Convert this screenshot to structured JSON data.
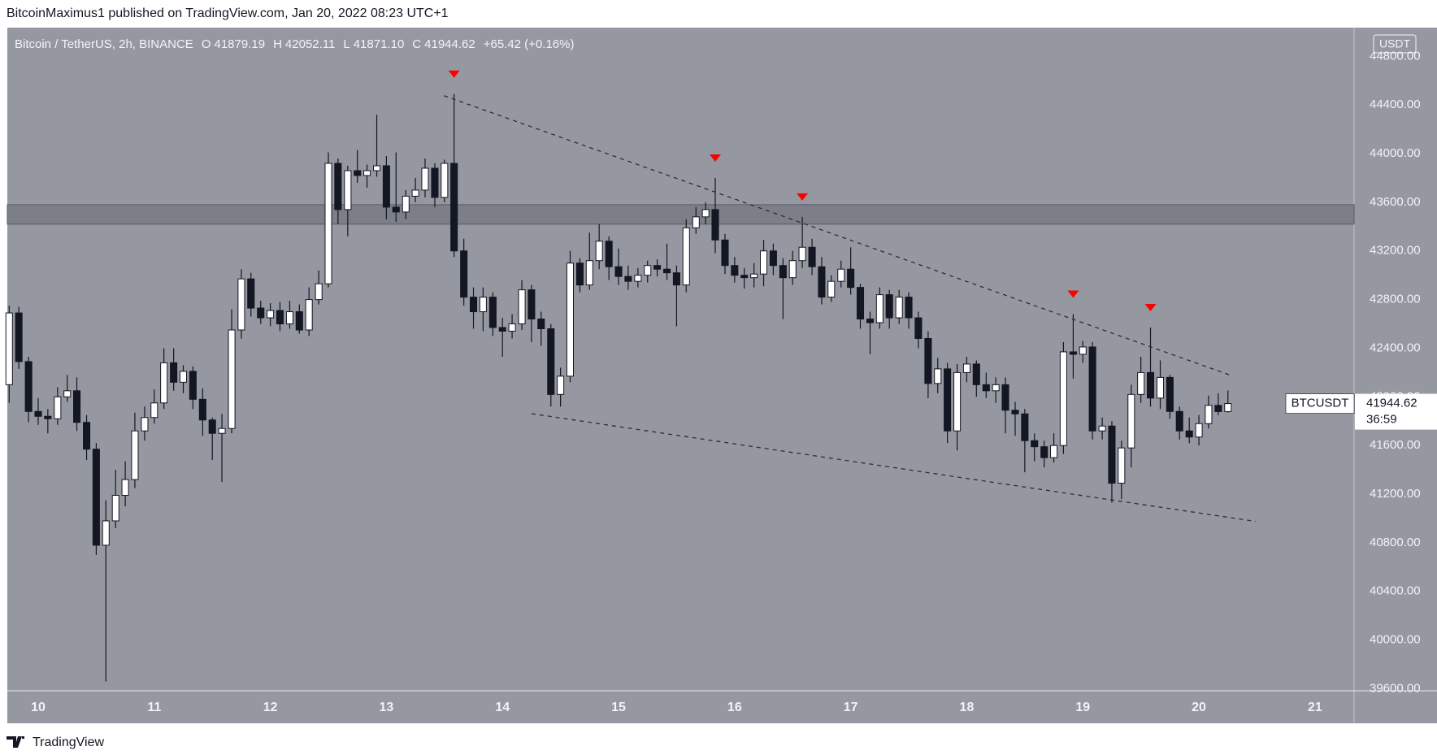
{
  "header": {
    "byline": "BitcoinMaximus1 published on TradingView.com, Jan 20, 2022 08:23 UTC+1"
  },
  "chart_data": {
    "type": "candlestick",
    "title": "Bitcoin / TetherUS, 2h, BINANCE",
    "ohlc_labels": [
      "O",
      "H",
      "L",
      "C"
    ],
    "last_bar_labels": {
      "open": "41879.19",
      "high": "42052.11",
      "low": "41871.10",
      "close": "41944.62"
    },
    "change_label": "+65.42 (+0.16%)",
    "currency": "USDT",
    "countdown": "36:59",
    "x": [
      9.75,
      9.833,
      9.917,
      10,
      10.083,
      10.167,
      10.25,
      10.333,
      10.417,
      10.5,
      10.583,
      10.667,
      10.75,
      10.833,
      10.917,
      11,
      11.083,
      11.167,
      11.25,
      11.333,
      11.417,
      11.5,
      11.583,
      11.667,
      11.75,
      11.833,
      11.917,
      12,
      12.083,
      12.167,
      12.25,
      12.333,
      12.417,
      12.5,
      12.583,
      12.667,
      12.75,
      12.833,
      12.917,
      13,
      13.083,
      13.167,
      13.25,
      13.333,
      13.417,
      13.5,
      13.583,
      13.667,
      13.75,
      13.833,
      13.917,
      14,
      14.083,
      14.167,
      14.25,
      14.333,
      14.417,
      14.5,
      14.583,
      14.667,
      14.75,
      14.833,
      14.917,
      15,
      15.083,
      15.167,
      15.25,
      15.333,
      15.417,
      15.5,
      15.583,
      15.667,
      15.75,
      15.833,
      15.917,
      16,
      16.083,
      16.167,
      16.25,
      16.333,
      16.417,
      16.5,
      16.583,
      16.667,
      16.75,
      16.833,
      16.917,
      17,
      17.083,
      17.167,
      17.25,
      17.333,
      17.417,
      17.5,
      17.583,
      17.667,
      17.75,
      17.833,
      17.917,
      18,
      18.083,
      18.167,
      18.25,
      18.333,
      18.417,
      18.5,
      18.583,
      18.667,
      18.75,
      18.833,
      18.917,
      19,
      19.083,
      19.167,
      19.25,
      19.333,
      19.417,
      19.5,
      19.583,
      19.667,
      19.75,
      19.833,
      19.917,
      20,
      20.083,
      20.167,
      20.25
    ],
    "series": [
      {
        "name": "BTCUSDT",
        "up_color": "#ffffff",
        "down_color": "#131722",
        "open": [
          42100,
          42690,
          42290,
          41880,
          41840,
          41820,
          42000,
          42050,
          41790,
          41570,
          40780,
          40980,
          41190,
          41320,
          41720,
          41830,
          41950,
          42280,
          42120,
          42210,
          41980,
          41810,
          41700,
          41740,
          42550,
          42970,
          42730,
          42650,
          42710,
          42600,
          42700,
          42550,
          42800,
          42930,
          43920,
          43540,
          43860,
          43820,
          43860,
          43900,
          43560,
          43520,
          43650,
          43700,
          43880,
          43640,
          43920,
          43200,
          42820,
          42700,
          42820,
          42570,
          42540,
          42600,
          42880,
          42640,
          42560,
          42020,
          42170,
          43100,
          42920,
          43120,
          43280,
          43070,
          42990,
          42950,
          43000,
          43080,
          43050,
          43020,
          42920,
          43390,
          43480,
          43540,
          43290,
          43080,
          43000,
          42980,
          43010,
          43200,
          43080,
          42980,
          43120,
          43230,
          43070,
          42820,
          42950,
          43050,
          42900,
          42640,
          42610,
          42840,
          42650,
          42820,
          42650,
          42480,
          42110,
          42230,
          41720,
          42200,
          42270,
          42100,
          42050,
          42100,
          41890,
          41860,
          41640,
          41590,
          41500,
          41600,
          42370,
          42350,
          42410,
          41720,
          41760,
          41290,
          41580,
          42020,
          42200,
          41990,
          42160,
          41880,
          41720,
          41670,
          41780,
          41930,
          41879.19
        ],
        "high": [
          42750,
          42740,
          42330,
          41990,
          41900,
          42080,
          42180,
          42160,
          41850,
          41620,
          41150,
          41400,
          41470,
          41870,
          41920,
          42060,
          42400,
          42400,
          42260,
          42250,
          42070,
          41830,
          41860,
          42720,
          43050,
          43020,
          42790,
          42770,
          42780,
          42790,
          42760,
          42900,
          43040,
          44010,
          43960,
          43900,
          44030,
          43910,
          44320,
          43980,
          44010,
          43700,
          43800,
          43960,
          43920,
          43950,
          44490,
          43300,
          42900,
          42900,
          42860,
          42650,
          42680,
          42960,
          42920,
          42700,
          42600,
          42240,
          43200,
          43140,
          43350,
          43420,
          43320,
          43220,
          43080,
          43060,
          43120,
          43130,
          43260,
          43080,
          43460,
          43560,
          43600,
          43800,
          43340,
          43150,
          43060,
          43100,
          43290,
          43260,
          43140,
          43200,
          43480,
          43300,
          43150,
          43000,
          43120,
          43230,
          42930,
          42700,
          42900,
          42880,
          42880,
          42860,
          42700,
          42540,
          42320,
          42280,
          42270,
          42330,
          42300,
          42200,
          42160,
          42160,
          41960,
          41900,
          41700,
          41640,
          41700,
          42450,
          42680,
          42460,
          42450,
          41830,
          41800,
          41640,
          42100,
          42330,
          42570,
          42300,
          42180,
          41920,
          41830,
          41850,
          42010,
          42030,
          42052.11
        ],
        "low": [
          41950,
          42230,
          41790,
          41770,
          41700,
          41770,
          41960,
          41720,
          41480,
          40700,
          39660,
          40920,
          41100,
          41250,
          41640,
          41780,
          41900,
          42050,
          42030,
          41900,
          41680,
          41480,
          41300,
          41700,
          42480,
          42660,
          42600,
          42580,
          42540,
          42560,
          42520,
          42500,
          42760,
          42900,
          43420,
          43320,
          43760,
          43720,
          43810,
          43460,
          43440,
          43460,
          43600,
          43640,
          43560,
          43600,
          43150,
          42750,
          42560,
          42540,
          42500,
          42330,
          42480,
          42550,
          42450,
          42420,
          41920,
          41920,
          42120,
          42860,
          42880,
          43050,
          42960,
          42920,
          42880,
          42900,
          42940,
          42990,
          42960,
          42580,
          42860,
          43340,
          43420,
          43180,
          43010,
          42940,
          42890,
          42900,
          42910,
          43000,
          42640,
          42920,
          43060,
          43000,
          42760,
          42780,
          42900,
          42840,
          42560,
          42350,
          42560,
          42560,
          42600,
          42560,
          42400,
          41990,
          42030,
          41620,
          41560,
          42120,
          42000,
          41990,
          41950,
          41700,
          41680,
          41380,
          41470,
          41420,
          41460,
          41530,
          42150,
          42280,
          41650,
          41650,
          41130,
          41160,
          41420,
          41950,
          41920,
          41900,
          41820,
          41650,
          41620,
          41600,
          41740,
          41850,
          41871.1
        ],
        "close": [
          42690,
          42290,
          41880,
          41840,
          41820,
          42000,
          42050,
          41790,
          41570,
          40780,
          40980,
          41190,
          41320,
          41720,
          41830,
          41950,
          42280,
          42120,
          42210,
          41980,
          41810,
          41700,
          41740,
          42550,
          42970,
          42730,
          42650,
          42710,
          42600,
          42700,
          42550,
          42800,
          42930,
          43920,
          43540,
          43860,
          43820,
          43860,
          43900,
          43560,
          43520,
          43650,
          43700,
          43880,
          43640,
          43920,
          43200,
          42820,
          42700,
          42820,
          42570,
          42540,
          42600,
          42880,
          42640,
          42560,
          42020,
          42170,
          43100,
          42920,
          43120,
          43280,
          43070,
          42990,
          42950,
          43000,
          43080,
          43050,
          43020,
          42920,
          43390,
          43480,
          43540,
          43290,
          43080,
          43000,
          42980,
          43010,
          43200,
          43080,
          42980,
          43120,
          43230,
          43070,
          42820,
          42950,
          43050,
          42900,
          42640,
          42610,
          42840,
          42650,
          42820,
          42650,
          42480,
          42110,
          42230,
          41720,
          42200,
          42270,
          42100,
          42050,
          42100,
          41890,
          41860,
          41640,
          41590,
          41500,
          41600,
          42370,
          42350,
          42410,
          41720,
          41760,
          41290,
          41580,
          42020,
          42200,
          41990,
          42160,
          41880,
          41720,
          41670,
          41780,
          41930,
          41879.19,
          41944.62
        ]
      }
    ],
    "xlim": [
      9.734,
      21.337
    ],
    "xticks": [
      10,
      11,
      12,
      13,
      14,
      15,
      16,
      17,
      18,
      19,
      20,
      21
    ],
    "ylim": [
      39583,
      45036
    ],
    "yticks": [
      {
        "value": 39600,
        "label": "39600.00"
      },
      {
        "value": 40000,
        "label": "40000.00"
      },
      {
        "value": 40400,
        "label": "40400.00"
      },
      {
        "value": 40800,
        "label": "40800.00"
      },
      {
        "value": 41200,
        "label": "41200.00"
      },
      {
        "value": 41600,
        "label": "41600.00"
      },
      {
        "value": 42000,
        "label": "42000.00"
      },
      {
        "value": 42400,
        "label": "42400.00"
      },
      {
        "value": 42800,
        "label": "42800.00"
      },
      {
        "value": 43200,
        "label": "43200.00"
      },
      {
        "value": 43600,
        "label": "43600.00"
      },
      {
        "value": 44000,
        "label": "44000.00"
      },
      {
        "value": 44400,
        "label": "44400.00"
      },
      {
        "value": 44800,
        "label": "44800.00"
      }
    ],
    "grid": false,
    "resistance_zone": [
      43420,
      43580
    ],
    "trendlines": [
      {
        "x": [
          13.496,
          20.266
        ],
        "y": [
          44476,
          42180
        ]
      },
      {
        "x": [
          14.25,
          20.488
        ],
        "y": [
          41862,
          40976
        ]
      }
    ],
    "peak_markers": {
      "x": [
        13.583,
        15.833,
        16.583,
        18.917,
        19.583
      ],
      "color": "#ff0000"
    }
  },
  "footer": {
    "brand": "TradingView"
  }
}
